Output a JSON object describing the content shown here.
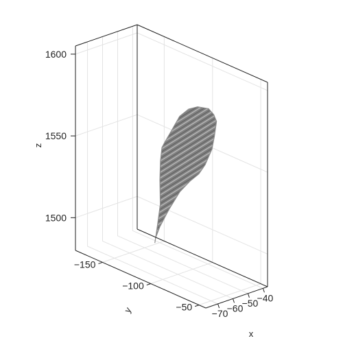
{
  "chart_data": {
    "type": "scatter",
    "projection": "3d",
    "title": "",
    "xlabel": "x",
    "ylabel": "y",
    "zlabel": "z",
    "xlim": [
      -78,
      -37
    ],
    "ylim": [
      -178,
      -43
    ],
    "zlim": [
      1480,
      1605
    ],
    "grid": true,
    "legend": "none",
    "x_ticks": [
      "−70",
      "−60",
      "−50",
      "−40"
    ],
    "y_ticks": [
      "−50",
      "−100",
      "−150"
    ],
    "z_ticks": [
      "1500",
      "1550",
      "1600"
    ],
    "surface_color": "#7f7f7f",
    "surface_outline": [
      {
        "x": -60,
        "y": -60,
        "z": 1584
      },
      {
        "x": -58,
        "y": -66,
        "z": 1586
      },
      {
        "x": -55,
        "y": -76,
        "z": 1586
      },
      {
        "x": -52,
        "y": -92,
        "z": 1582
      },
      {
        "x": -49,
        "y": -106,
        "z": 1576
      },
      {
        "x": -46,
        "y": -120,
        "z": 1567
      },
      {
        "x": -44,
        "y": -132,
        "z": 1554
      },
      {
        "x": -43,
        "y": -140,
        "z": 1545
      },
      {
        "x": -43,
        "y": -143,
        "z": 1541
      },
      {
        "x": -44,
        "y": -143,
        "z": 1533
      },
      {
        "x": -45,
        "y": -142,
        "z": 1522
      },
      {
        "x": -46,
        "y": -140,
        "z": 1508
      },
      {
        "x": -48,
        "y": -140,
        "z": 1495
      },
      {
        "x": -49,
        "y": -141,
        "z": 1485
      },
      {
        "x": -51,
        "y": -137,
        "z": 1490
      },
      {
        "x": -54,
        "y": -128,
        "z": 1500
      },
      {
        "x": -57,
        "y": -114,
        "z": 1515
      },
      {
        "x": -60,
        "y": -98,
        "z": 1531
      },
      {
        "x": -62,
        "y": -84,
        "z": 1542
      },
      {
        "x": -64,
        "y": -72,
        "z": 1550
      },
      {
        "x": -65,
        "y": -64,
        "z": 1558
      },
      {
        "x": -63,
        "y": -60,
        "z": 1568
      },
      {
        "x": -62,
        "y": -59,
        "z": 1576
      }
    ]
  }
}
